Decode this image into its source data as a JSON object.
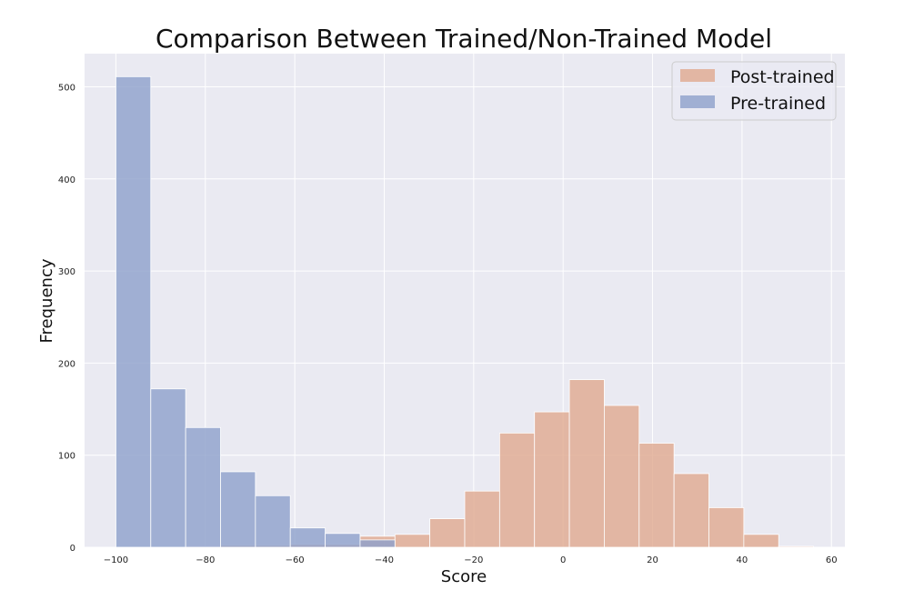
{
  "chart_data": {
    "type": "bar",
    "title": "Comparison Between Trained/Non-Trained Model",
    "xlabel": "Score",
    "ylabel": "Frequency",
    "xlim": [
      -107,
      63
    ],
    "ylim": [
      0,
      536
    ],
    "x_ticks": [
      -100,
      -80,
      -60,
      -40,
      -20,
      0,
      20,
      40,
      60
    ],
    "y_ticks": [
      0,
      100,
      200,
      300,
      400,
      500
    ],
    "grid": true,
    "legend_position": "top-right",
    "series": [
      {
        "name": "Post-trained",
        "color": "#e0a98e",
        "bin_edges": [
          -100,
          -92.2,
          -84.4,
          -76.6,
          -68.8,
          -61.0,
          -53.2,
          -45.4,
          -37.6,
          -29.8,
          -22.0,
          -14.2,
          -6.4,
          1.4,
          9.2,
          17.0,
          24.8,
          32.6,
          40.4,
          48.2,
          56.0
        ],
        "values": [
          0,
          0,
          1,
          2,
          2,
          3,
          3,
          12,
          14,
          31,
          61,
          124,
          147,
          182,
          154,
          113,
          80,
          43,
          14,
          1
        ]
      },
      {
        "name": "Pre-trained",
        "color": "#8da0cb",
        "bin_edges": [
          -100,
          -92.2,
          -84.4,
          -76.6,
          -68.8,
          -61.0,
          -53.2,
          -45.4,
          -37.6,
          -29.8
        ],
        "values": [
          511,
          172,
          130,
          82,
          56,
          21,
          15,
          8,
          0
        ]
      }
    ]
  }
}
